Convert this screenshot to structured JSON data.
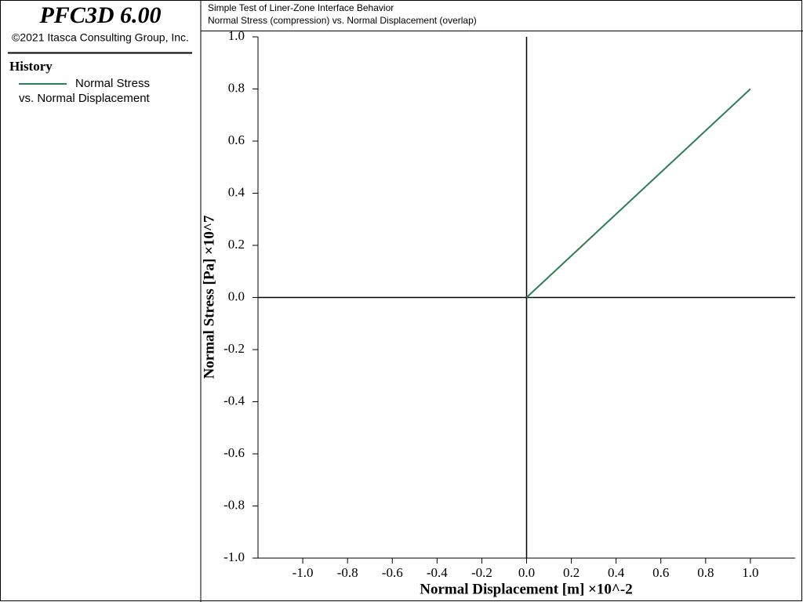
{
  "header": {
    "product": "PFC3D 6.00",
    "copyright": "©2021 Itasca Consulting Group, Inc.",
    "panel_title": "History"
  },
  "chart_data": {
    "type": "line",
    "title": "Simple Test of Liner-Zone Interface Behavior",
    "subtitle": "Normal Stress (compression) vs. Normal Displacement (overlap)",
    "x_label": "Normal Displacement [m] ×10^-2",
    "y_label": "Normal Stress [Pa] ×10^7",
    "x": [
      0,
      1.0
    ],
    "series": [
      {
        "name": "Normal Stress vs. Normal Displacement",
        "color": "#2e7d55",
        "values": [
          0,
          0.8
        ]
      }
    ],
    "xlim": [
      -1.2,
      1.2
    ],
    "ylim": [
      -1.0,
      1.0
    ],
    "xticks": [
      {
        "value": -1.0,
        "label": "-1.0"
      },
      {
        "value": -0.8,
        "label": "-0.8"
      },
      {
        "value": -0.6,
        "label": "-0.6"
      },
      {
        "value": -0.4,
        "label": "-0.4"
      },
      {
        "value": -0.2,
        "label": "-0.2"
      },
      {
        "value": 0,
        "label": "0.0"
      },
      {
        "value": 0.2,
        "label": "0.2"
      },
      {
        "value": 0.4,
        "label": "0.4"
      },
      {
        "value": 0.6,
        "label": "0.6"
      },
      {
        "value": 0.8,
        "label": "0.8"
      },
      {
        "value": 1.0,
        "label": "1.0"
      }
    ],
    "yticks": [
      {
        "value": -1.0,
        "label": "-1.0"
      },
      {
        "value": -0.8,
        "label": "-0.8"
      },
      {
        "value": -0.6,
        "label": "-0.6"
      },
      {
        "value": -0.4,
        "label": "-0.4"
      },
      {
        "value": -0.2,
        "label": "-0.2"
      },
      {
        "value": 0,
        "label": "0.0"
      },
      {
        "value": 0.2,
        "label": "0.2"
      },
      {
        "value": 0.4,
        "label": "0.4"
      },
      {
        "value": 0.6,
        "label": "0.6"
      },
      {
        "value": 0.8,
        "label": "0.8"
      },
      {
        "value": 1.0,
        "label": "1.0"
      }
    ]
  }
}
